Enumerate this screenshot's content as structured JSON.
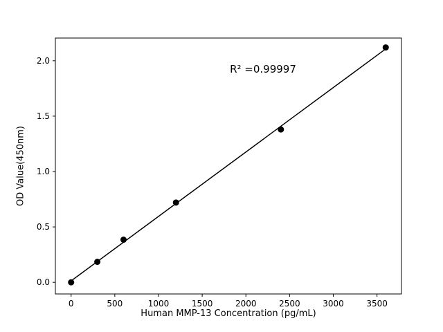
{
  "chart_data": {
    "type": "scatter",
    "title": "",
    "xlabel": "Human MMP-13 Concentration (pg/mL)",
    "ylabel": "OD Value(450nm)",
    "annotation": "R² =0.99997",
    "points": [
      [
        0,
        0.0
      ],
      [
        300,
        0.185
      ],
      [
        600,
        0.385
      ],
      [
        1200,
        0.72
      ],
      [
        2400,
        1.38
      ],
      [
        3600,
        2.12
      ]
    ],
    "fit_line": true,
    "xlim": [
      -180,
      3780
    ],
    "ylim": [
      -0.105,
      2.205
    ],
    "xticks": [
      0,
      500,
      1000,
      1500,
      2000,
      2500,
      3000,
      3500
    ],
    "yticks": [
      0.0,
      0.5,
      1.0,
      1.5,
      2.0
    ],
    "grid": false,
    "legend": "none",
    "marker_color": "#000000",
    "line_color": "#000000",
    "background_color": "#ffffff"
  }
}
